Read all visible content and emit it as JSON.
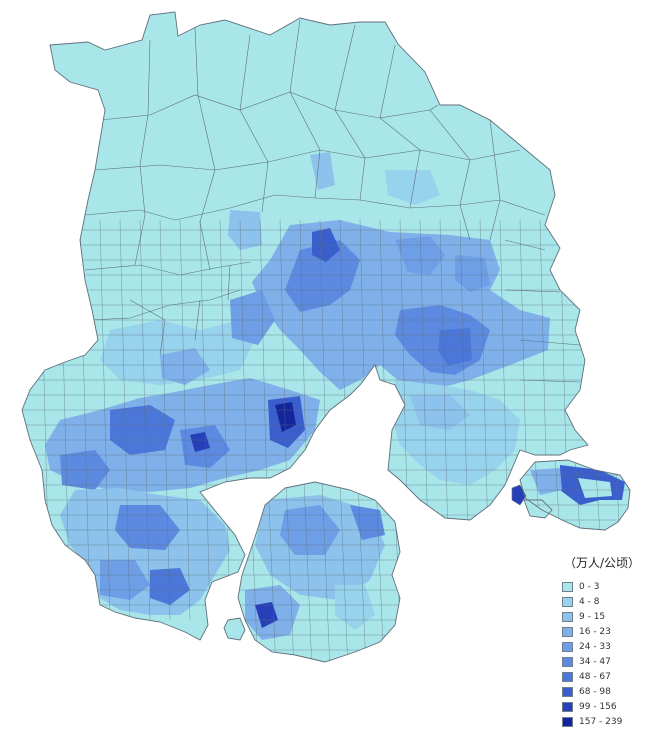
{
  "legend": {
    "title": "（万人/公顷）",
    "classes": [
      {
        "label": "0 - 3",
        "color": "#a8e6ea"
      },
      {
        "label": "4 - 8",
        "color": "#97d3ec"
      },
      {
        "label": "9 - 15",
        "color": "#8cc2ec"
      },
      {
        "label": "16 - 23",
        "color": "#7fb0ea"
      },
      {
        "label": "24 - 33",
        "color": "#6d9ee6"
      },
      {
        "label": "34 - 47",
        "color": "#5b8ae0"
      },
      {
        "label": "48 - 67",
        "color": "#4b77d8"
      },
      {
        "label": "68 - 98",
        "color": "#3a5fcc"
      },
      {
        "label": "99 - 156",
        "color": "#273fb8"
      },
      {
        "label": "157 - 239",
        "color": "#14259c"
      }
    ]
  },
  "map": {
    "base_color": "#a8e6ea",
    "border_color": "#5f6f7a"
  }
}
